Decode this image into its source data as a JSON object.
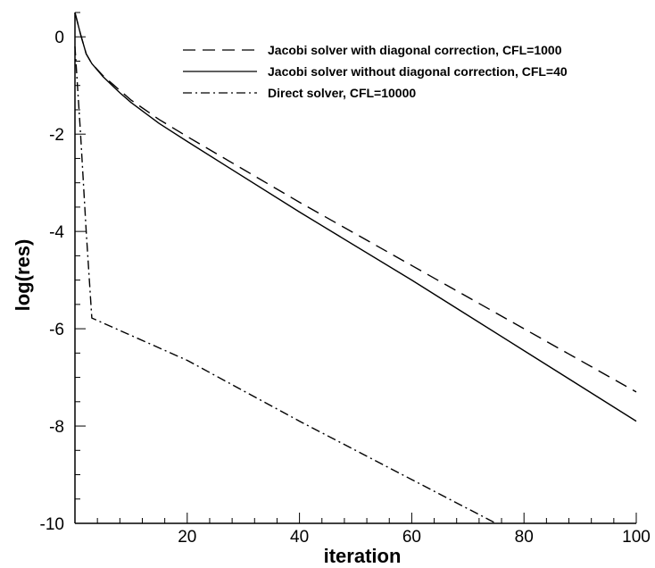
{
  "chart_data": {
    "type": "line",
    "xlabel": "iteration",
    "ylabel": "log(res)",
    "xlim": [
      0,
      100
    ],
    "ylim": [
      -10,
      0.5
    ],
    "x_ticks": [
      20,
      40,
      60,
      80,
      100
    ],
    "y_ticks": [
      0,
      -2,
      -4,
      -6,
      -8,
      -10
    ],
    "x_minor_step": 4,
    "y_minor_step": 0.5,
    "legend_position": "top-right",
    "grid": false,
    "series": [
      {
        "name": "Jacobi solver with diagonal correction, CFL=1000",
        "style": "dashed",
        "color": "#000000",
        "points": [
          [
            0,
            0.5
          ],
          [
            1,
            0.05
          ],
          [
            2,
            -0.35
          ],
          [
            3,
            -0.55
          ],
          [
            5,
            -0.8
          ],
          [
            8,
            -1.1
          ],
          [
            10,
            -1.3
          ],
          [
            15,
            -1.7
          ],
          [
            20,
            -2.05
          ],
          [
            40,
            -3.4
          ],
          [
            60,
            -4.7
          ],
          [
            80,
            -6.0
          ],
          [
            100,
            -7.3
          ]
        ]
      },
      {
        "name": "Jacobi solver without diagonal correction, CFL=40",
        "style": "solid",
        "color": "#000000",
        "points": [
          [
            0,
            0.5
          ],
          [
            1,
            0.05
          ],
          [
            2,
            -0.35
          ],
          [
            3,
            -0.55
          ],
          [
            5,
            -0.82
          ],
          [
            8,
            -1.15
          ],
          [
            10,
            -1.35
          ],
          [
            15,
            -1.78
          ],
          [
            20,
            -2.15
          ],
          [
            40,
            -3.6
          ],
          [
            60,
            -5.0
          ],
          [
            80,
            -6.45
          ],
          [
            100,
            -7.9
          ]
        ]
      },
      {
        "name": "Direct solver, CFL=10000",
        "style": "dashdot",
        "color": "#000000",
        "points": [
          [
            0,
            -0.2
          ],
          [
            1,
            -2.0
          ],
          [
            2,
            -4.0
          ],
          [
            3,
            -5.78
          ],
          [
            20,
            -6.65
          ],
          [
            40,
            -7.9
          ],
          [
            60,
            -9.1
          ],
          [
            75,
            -10.0
          ]
        ]
      }
    ]
  }
}
